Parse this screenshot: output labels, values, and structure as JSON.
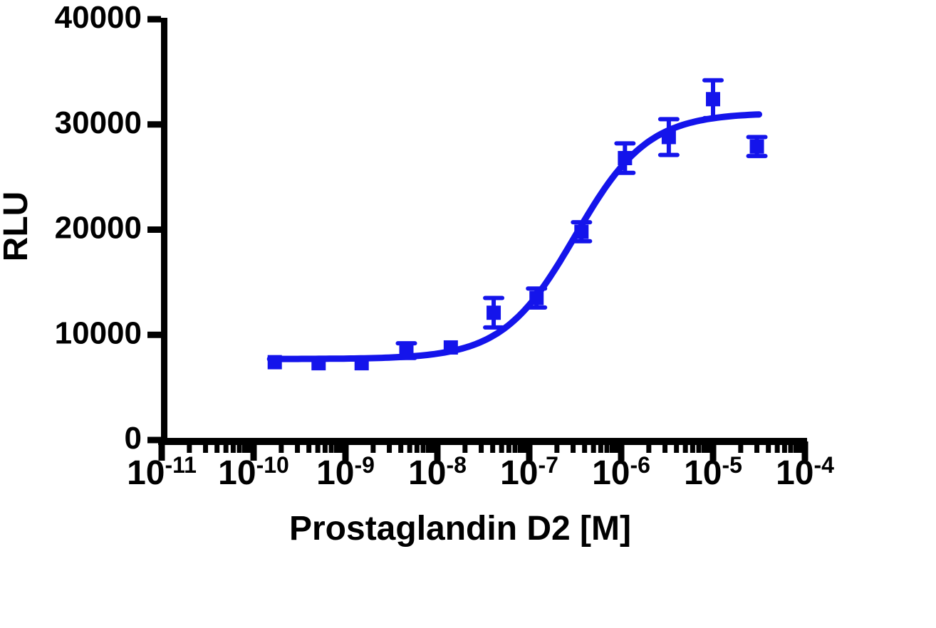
{
  "chart_data": {
    "type": "scatter",
    "title": "",
    "xlabel": "Prostaglandin D2 [M]",
    "ylabel": "RLU",
    "x_scale": "log10",
    "xlim_log": [
      -11,
      -4
    ],
    "x_major_tick_exponents": [
      -11,
      -10,
      -9,
      -8,
      -7,
      -6,
      -5,
      -4
    ],
    "x_minor_tick_decades": [
      -11,
      -10,
      -9,
      -8,
      -7,
      -6,
      -5
    ],
    "ylim": [
      0,
      40000
    ],
    "y_ticks": [
      0,
      10000,
      20000,
      30000,
      40000
    ],
    "grid": false,
    "legend": "none",
    "background": "#ffffff",
    "axis_color": "#000000",
    "series": [
      {
        "name": "Prostaglandin D2",
        "marker": "square",
        "color": "#1414eb",
        "points": [
          {
            "x": 1.7e-10,
            "y": 7400,
            "sem": 0
          },
          {
            "x": 5.1e-10,
            "y": 7300,
            "sem": 0
          },
          {
            "x": 1.5e-09,
            "y": 7300,
            "sem": 0
          },
          {
            "x": 4.6e-09,
            "y": 8500,
            "sem": 700
          },
          {
            "x": 1.4e-08,
            "y": 8800,
            "sem": 0
          },
          {
            "x": 4.1e-08,
            "y": 12100,
            "sem": 1400
          },
          {
            "x": 1.2e-07,
            "y": 13500,
            "sem": 900
          },
          {
            "x": 3.7e-07,
            "y": 19800,
            "sem": 900
          },
          {
            "x": 1.1e-06,
            "y": 26800,
            "sem": 1400
          },
          {
            "x": 3.3e-06,
            "y": 28800,
            "sem": 1700
          },
          {
            "x": 1e-05,
            "y": 32400,
            "sem": 1800
          },
          {
            "x": 3e-05,
            "y": 27900,
            "sem": 900
          }
        ]
      }
    ],
    "fit_curve": {
      "model": "four-parameter-logistic",
      "bottom": 7700,
      "top": 31100,
      "log_ec50": -6.5,
      "hill": 1.1,
      "x_start_log": -9.82,
      "x_end_log": -4.5,
      "color": "#1414eb"
    }
  }
}
